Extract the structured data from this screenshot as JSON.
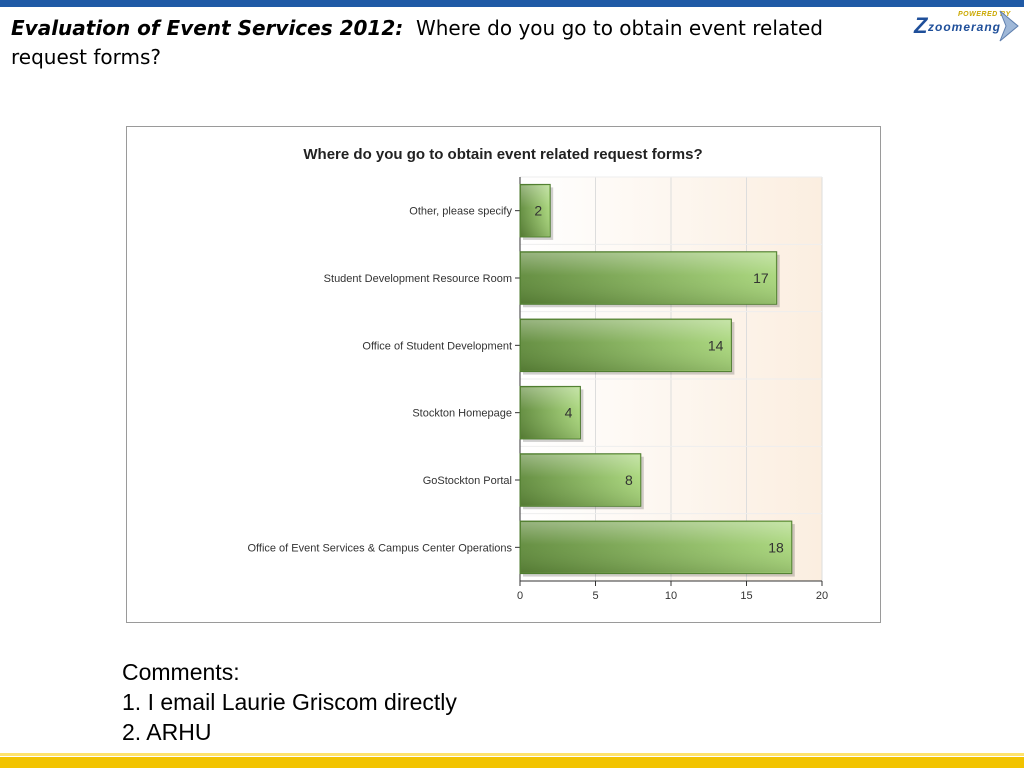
{
  "slide": {
    "title_italic": "Evaluation of Event Services 2012:",
    "title_rest": "Where do you go to obtain event related request forms?"
  },
  "logo": {
    "powered_text": "POWERED BY",
    "brand": "zoomerang"
  },
  "chart_data": {
    "type": "bar",
    "orientation": "horizontal",
    "title": "Where do you go to obtain event related request forms?",
    "categories": [
      "Other, please specify",
      "Student Development Resource Room",
      "Office of Student Development",
      "Stockton Homepage",
      "GoStockton Portal",
      "Office of Event Services & Campus Center Operations"
    ],
    "values": [
      2,
      17,
      14,
      4,
      8,
      18
    ],
    "xlim": [
      0,
      20
    ],
    "xticks": [
      0,
      5,
      10,
      15,
      20
    ],
    "grid": true,
    "colors": {
      "bar_dark": "#5f8a3a",
      "bar_light": "#a8d67a",
      "bar_edge": "#4d7a2e"
    }
  },
  "comments": {
    "heading": "Comments:",
    "items": [
      "1. I email Laurie Griscom directly",
      "2. ARHU"
    ]
  }
}
